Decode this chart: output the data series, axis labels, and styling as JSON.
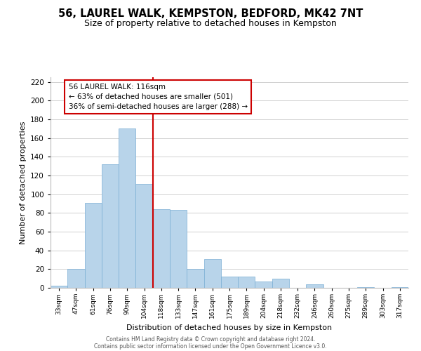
{
  "title": "56, LAUREL WALK, KEMPSTON, BEDFORD, MK42 7NT",
  "subtitle": "Size of property relative to detached houses in Kempston",
  "xlabel": "Distribution of detached houses by size in Kempston",
  "ylabel": "Number of detached properties",
  "bar_labels": [
    "33sqm",
    "47sqm",
    "61sqm",
    "76sqm",
    "90sqm",
    "104sqm",
    "118sqm",
    "133sqm",
    "147sqm",
    "161sqm",
    "175sqm",
    "189sqm",
    "204sqm",
    "218sqm",
    "232sqm",
    "246sqm",
    "260sqm",
    "275sqm",
    "289sqm",
    "303sqm",
    "317sqm"
  ],
  "bar_values": [
    2,
    20,
    91,
    132,
    170,
    111,
    84,
    83,
    20,
    31,
    12,
    12,
    7,
    10,
    0,
    4,
    0,
    0,
    1,
    0,
    1
  ],
  "bar_color": "#b8d4ea",
  "bar_edge_color": "#7aaed4",
  "property_line_index": 6,
  "property_line_label": "56 LAUREL WALK: 116sqm",
  "annotation_line1": "← 63% of detached houses are smaller (501)",
  "annotation_line2": "36% of semi-detached houses are larger (288) →",
  "annotation_box_color": "#ffffff",
  "annotation_box_edge": "#cc0000",
  "line_color": "#cc0000",
  "ylim": [
    0,
    225
  ],
  "yticks": [
    0,
    20,
    40,
    60,
    80,
    100,
    120,
    140,
    160,
    180,
    200,
    220
  ],
  "footer1": "Contains HM Land Registry data © Crown copyright and database right 2024.",
  "footer2": "Contains public sector information licensed under the Open Government Licence v3.0.",
  "title_fontsize": 10.5,
  "subtitle_fontsize": 9,
  "background_color": "#ffffff",
  "grid_color": "#d0d0d0"
}
